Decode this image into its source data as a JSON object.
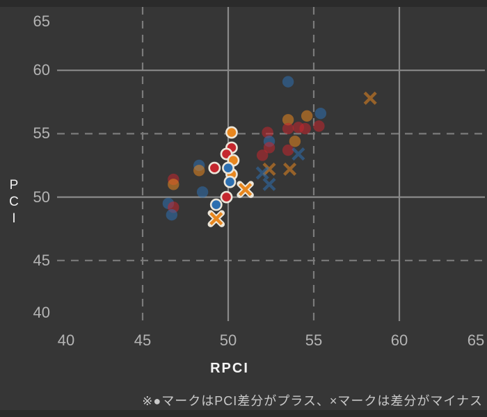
{
  "page": {
    "bg": "#2b2b2b",
    "chart_bg": "#363636"
  },
  "axes": {
    "x": {
      "label": "RPCI",
      "min": 40,
      "max": 65,
      "ticks": [
        "40",
        "45",
        "50",
        "55",
        "60",
        "65"
      ],
      "tick_values": [
        40,
        45,
        50,
        55,
        60,
        65
      ]
    },
    "y": {
      "label": "PCI",
      "min": 40,
      "max": 65,
      "ticks": [
        "65",
        "60",
        "55",
        "50",
        "45",
        "40"
      ],
      "tick_values": [
        65,
        60,
        55,
        50,
        45,
        40
      ]
    },
    "gridlines": [
      {
        "value": 45,
        "style": "dashed"
      },
      {
        "value": 50,
        "style": "solid"
      },
      {
        "value": 55,
        "style": "dashed"
      },
      {
        "value": 60,
        "style": "solid"
      }
    ],
    "grid_solid_color": "#8a8a8a",
    "grid_dashed_color": "#7b7b7b"
  },
  "colors": {
    "blue": "#2d6fb0",
    "red": "#c5272e",
    "orange": "#e8871f",
    "highlight_ring": "#ece6da",
    "tick_text": "#b4b4b4",
    "title_text": "#f2f2f2",
    "caption_text": "#c9c9c9"
  },
  "caption": "※●マークはPCI差分がプラス、×マークは差分がマイナス",
  "chart_data": {
    "type": "scatter",
    "title": "",
    "xlabel": "RPCI",
    "ylabel": "PCI",
    "xlim": [
      40,
      65
    ],
    "ylim": [
      40,
      65
    ],
    "grid": "on",
    "legend": "none",
    "annotation": "※●マークはPCI差分がプラス、×マークは差分がマイナス",
    "marker_meaning": {
      "circle": "PCI差分がプラス",
      "x": "PCI差分がマイナス"
    },
    "points": [
      {
        "x": 48.3,
        "y": 52.5,
        "marker": "circle",
        "color": "blue",
        "emphasized": false
      },
      {
        "x": 48.3,
        "y": 52.1,
        "marker": "circle",
        "color": "orange",
        "emphasized": false
      },
      {
        "x": 46.8,
        "y": 51.4,
        "marker": "circle",
        "color": "red",
        "emphasized": false
      },
      {
        "x": 46.8,
        "y": 51.0,
        "marker": "circle",
        "color": "orange",
        "emphasized": false
      },
      {
        "x": 48.5,
        "y": 50.4,
        "marker": "circle",
        "color": "blue",
        "emphasized": false
      },
      {
        "x": 46.5,
        "y": 49.5,
        "marker": "circle",
        "color": "blue",
        "emphasized": false
      },
      {
        "x": 46.8,
        "y": 49.2,
        "marker": "circle",
        "color": "red",
        "emphasized": false
      },
      {
        "x": 46.7,
        "y": 48.6,
        "marker": "circle",
        "color": "blue",
        "emphasized": false
      },
      {
        "x": 53.5,
        "y": 59.1,
        "marker": "circle",
        "color": "blue",
        "emphasized": false
      },
      {
        "x": 58.3,
        "y": 57.8,
        "marker": "x",
        "color": "orange",
        "emphasized": false
      },
      {
        "x": 55.4,
        "y": 56.6,
        "marker": "circle",
        "color": "blue",
        "emphasized": false
      },
      {
        "x": 54.6,
        "y": 56.4,
        "marker": "circle",
        "color": "orange",
        "emphasized": false
      },
      {
        "x": 53.5,
        "y": 56.1,
        "marker": "circle",
        "color": "orange",
        "emphasized": false
      },
      {
        "x": 52.3,
        "y": 55.1,
        "marker": "circle",
        "color": "red",
        "emphasized": false
      },
      {
        "x": 53.5,
        "y": 55.4,
        "marker": "circle",
        "color": "red",
        "emphasized": false
      },
      {
        "x": 54.1,
        "y": 55.5,
        "marker": "circle",
        "color": "red",
        "emphasized": false
      },
      {
        "x": 54.5,
        "y": 55.4,
        "marker": "circle",
        "color": "red",
        "emphasized": false
      },
      {
        "x": 55.3,
        "y": 55.6,
        "marker": "circle",
        "color": "red",
        "emphasized": false
      },
      {
        "x": 52.4,
        "y": 54.4,
        "marker": "circle",
        "color": "blue",
        "emphasized": false
      },
      {
        "x": 53.9,
        "y": 54.4,
        "marker": "circle",
        "color": "orange",
        "emphasized": false
      },
      {
        "x": 52.4,
        "y": 53.9,
        "marker": "circle",
        "color": "red",
        "emphasized": false
      },
      {
        "x": 53.5,
        "y": 53.7,
        "marker": "circle",
        "color": "red",
        "emphasized": false
      },
      {
        "x": 52.0,
        "y": 53.3,
        "marker": "circle",
        "color": "red",
        "emphasized": false
      },
      {
        "x": 54.1,
        "y": 53.4,
        "marker": "x",
        "color": "blue",
        "emphasized": false
      },
      {
        "x": 52.4,
        "y": 52.2,
        "marker": "x",
        "color": "orange",
        "emphasized": false
      },
      {
        "x": 53.6,
        "y": 52.2,
        "marker": "x",
        "color": "orange",
        "emphasized": false
      },
      {
        "x": 52.0,
        "y": 51.9,
        "marker": "x",
        "color": "blue",
        "emphasized": false
      },
      {
        "x": 52.4,
        "y": 51.0,
        "marker": "x",
        "color": "blue",
        "emphasized": false
      },
      {
        "x": 50.2,
        "y": 51.8,
        "marker": "circle",
        "color": "orange",
        "emphasized": true
      },
      {
        "x": 50.2,
        "y": 55.1,
        "marker": "circle",
        "color": "orange",
        "emphasized": true
      },
      {
        "x": 50.2,
        "y": 53.9,
        "marker": "circle",
        "color": "red",
        "emphasized": true
      },
      {
        "x": 49.9,
        "y": 53.4,
        "marker": "circle",
        "color": "red",
        "emphasized": true
      },
      {
        "x": 50.3,
        "y": 52.9,
        "marker": "circle",
        "color": "orange",
        "emphasized": true
      },
      {
        "x": 49.2,
        "y": 52.3,
        "marker": "circle",
        "color": "red",
        "emphasized": true
      },
      {
        "x": 50.0,
        "y": 52.3,
        "marker": "circle",
        "color": "blue",
        "emphasized": true
      },
      {
        "x": 50.1,
        "y": 51.2,
        "marker": "circle",
        "color": "blue",
        "emphasized": true
      },
      {
        "x": 51.0,
        "y": 50.6,
        "marker": "x",
        "color": "orange",
        "emphasized": true
      },
      {
        "x": 49.9,
        "y": 50.0,
        "marker": "circle",
        "color": "red",
        "emphasized": true
      },
      {
        "x": 49.3,
        "y": 49.4,
        "marker": "circle",
        "color": "blue",
        "emphasized": true
      },
      {
        "x": 49.3,
        "y": 48.3,
        "marker": "x",
        "color": "orange",
        "emphasized": true
      }
    ]
  }
}
